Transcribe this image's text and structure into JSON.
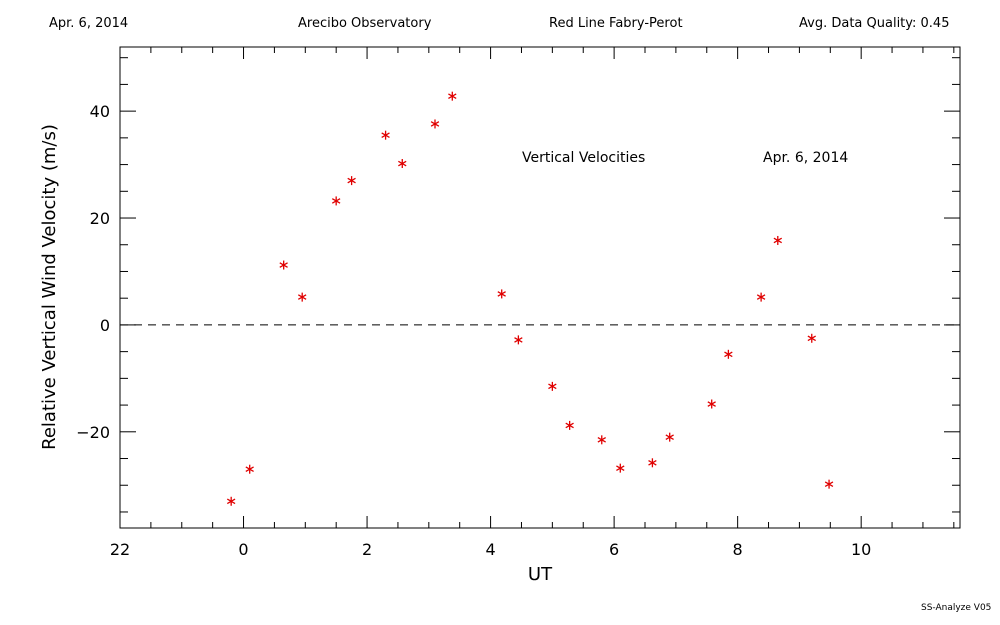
{
  "header": {
    "date": "Apr. 6, 2014",
    "observatory": "Arecibo Observatory",
    "instrument": "Red Line Fabry-Perot",
    "quality": "Avg. Data Quality: 0.45"
  },
  "footer": "SS-Analyze V05",
  "colors": {
    "points": "#e00000",
    "axes": "#000000"
  },
  "chart_data": {
    "type": "scatter",
    "xlabel": "UT",
    "ylabel": "Relative Vertical Wind Velocity (m/s)",
    "xlim": [
      22,
      35.6
    ],
    "x_unit": "hours UT (wraps after 24)",
    "x_ticks": [
      22,
      24,
      26,
      28,
      30,
      32,
      34
    ],
    "x_tick_labels": [
      "22",
      "0",
      "2",
      "4",
      "6",
      "8",
      "10"
    ],
    "ylim": [
      -38,
      52
    ],
    "y_ticks": [
      -20,
      0,
      20,
      40
    ],
    "y_tick_labels": [
      "−20",
      "0",
      "20",
      "40"
    ],
    "reference_line": {
      "y": 0,
      "style": "dashed"
    },
    "annotations": [
      "Vertical Velocities",
      "Apr. 6, 2014"
    ],
    "marker": "asterisk",
    "series": [
      {
        "x": [
          23.8,
          24.1,
          24.65,
          24.95,
          25.5,
          25.75,
          26.3,
          26.57,
          27.1,
          27.38,
          28.18,
          28.45,
          29.0,
          29.28,
          29.8,
          30.1,
          30.62,
          30.9,
          31.58,
          31.85,
          32.38,
          32.65,
          33.2,
          33.48
        ],
        "y": [
          -33,
          -27,
          11.2,
          5.2,
          23.2,
          27,
          35.5,
          30.2,
          37.6,
          42.8,
          5.8,
          -2.8,
          -11.5,
          -18.8,
          -21.5,
          -26.8,
          -25.8,
          -21,
          -14.8,
          -5.5,
          5.2,
          15.8,
          -2.5,
          -29.8
        ]
      }
    ]
  }
}
